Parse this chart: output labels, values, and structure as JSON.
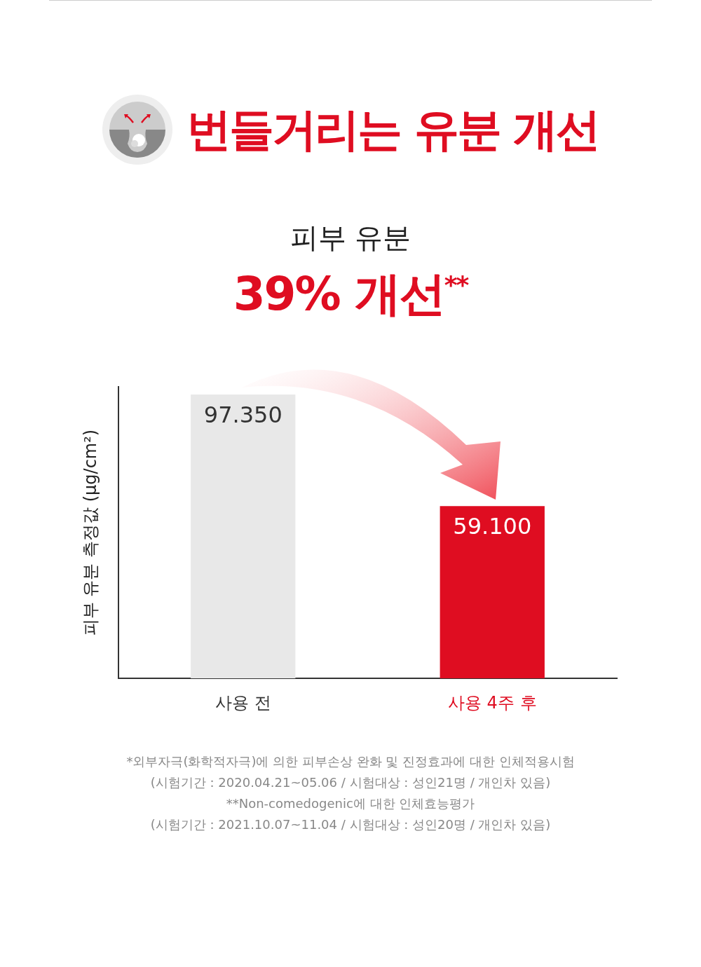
{
  "chart_data": {
    "type": "bar",
    "title": "번들거리는 유분 개선",
    "subtitle": "피부 유분",
    "ylabel": "피부 유분 측정값 (µg/cm²)",
    "categories": [
      "사용 전",
      "사용 4주 후"
    ],
    "values": [
      97.35,
      59.1
    ],
    "value_labels": [
      "97.350",
      "59.100"
    ],
    "colors": [
      "#e8e8e8",
      "#df0d21"
    ],
    "ylim": [
      0,
      100
    ],
    "tick_labels": "x",
    "grid": false,
    "legend": false,
    "annotations": [
      "39% 개선$^{**}$",
      "*외부자극(화학적자극)에 의한 피부손상 완화 및 진정효과에 대한 인체적용시험",
      "(시험기간 : 2020.04.21~05.06 / 시험대상 : 성인21명 / 개인차 있음)",
      "**Non-comedogenic에 대한 인체효능평가",
      "(시험기간 : 2021.10.07~11.04 / 시험대상 : 성인20명 / 개인차 있음)"
    ]
  }
}
